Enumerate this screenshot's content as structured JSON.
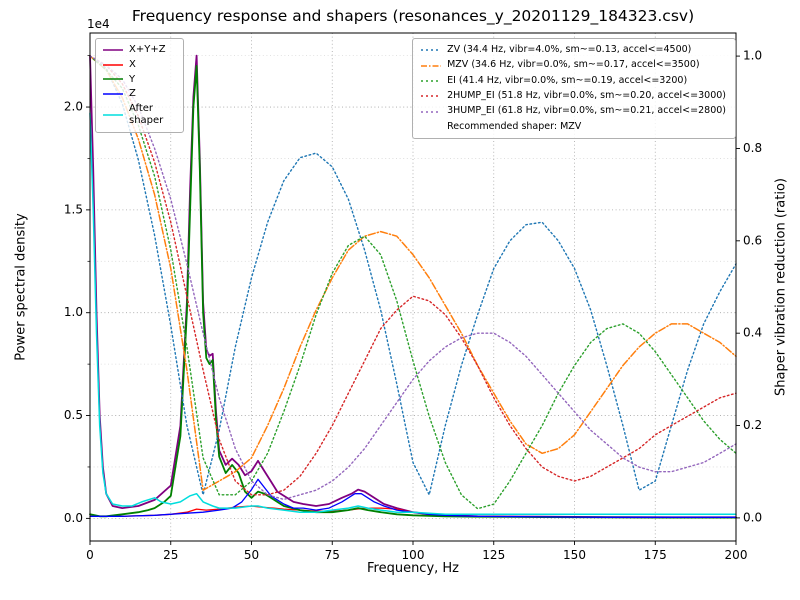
{
  "chart_data": {
    "type": "line",
    "title": "Frequency response and shapers (resonances_y_20201129_184323.csv)",
    "xlabel": "Frequency, Hz",
    "ylabel_left": "Power spectral density",
    "ylabel_right": "Shaper vibration reduction (ratio)",
    "offset_text": "1e4",
    "x_range": [
      0,
      200
    ],
    "y_left_range": [
      -0.11,
      2.36
    ],
    "y_right_range": [
      -0.05,
      1.05
    ],
    "x_ticks": [
      {
        "v": 0,
        "l": "0"
      },
      {
        "v": 25,
        "l": "25"
      },
      {
        "v": 50,
        "l": "50"
      },
      {
        "v": 75,
        "l": "75"
      },
      {
        "v": 100,
        "l": "100"
      },
      {
        "v": 125,
        "l": "125"
      },
      {
        "v": 150,
        "l": "150"
      },
      {
        "v": 175,
        "l": "175"
      },
      {
        "v": 200,
        "l": "200"
      }
    ],
    "y_left_ticks": [
      {
        "v": 0,
        "l": "0.0"
      },
      {
        "v": 0.5,
        "l": "0.5"
      },
      {
        "v": 1,
        "l": "1.0"
      },
      {
        "v": 1.5,
        "l": "1.5"
      },
      {
        "v": 2,
        "l": "2.0"
      }
    ],
    "y_left_minor_ticks": [
      0.25,
      0.75,
      1.25,
      1.75,
      2.25
    ],
    "y_right_ticks": [
      {
        "v": 0,
        "l": "0.0"
      },
      {
        "v": 0.2,
        "l": "0.2"
      },
      {
        "v": 0.4,
        "l": "0.4"
      },
      {
        "v": 0.6,
        "l": "0.6"
      },
      {
        "v": 0.8,
        "l": "0.8"
      },
      {
        "v": 1,
        "l": "1.0"
      }
    ],
    "grid": true,
    "legend_left_position": "upper-left",
    "legend_right_position": "upper-right",
    "recommended_note": "Recommended shaper: MZV",
    "colors": {
      "grid_major": "#a6a6a6",
      "grid_minor": "#d9d9d9",
      "spine": "#000000",
      "text": "#000000"
    },
    "series": [
      {
        "name": "X+Y+Z",
        "axis": "left",
        "color": "#800080",
        "style": "solid",
        "width": 1.8,
        "x": [
          0,
          1,
          2,
          3,
          4,
          5,
          7,
          10,
          15,
          20,
          25,
          28,
          30,
          31,
          32,
          33,
          34,
          35,
          36,
          37,
          38,
          39,
          40,
          42,
          44,
          46,
          48,
          50,
          52,
          54,
          56,
          58,
          60,
          63,
          66,
          70,
          74,
          78,
          81,
          83,
          85,
          88,
          91,
          95,
          100,
          105,
          110,
          120,
          140,
          160,
          180,
          200
        ],
        "y": [
          2.25,
          1.7,
          1.0,
          0.5,
          0.25,
          0.12,
          0.06,
          0.05,
          0.06,
          0.09,
          0.16,
          0.45,
          1.05,
          1.6,
          2.05,
          2.25,
          1.75,
          1.05,
          0.82,
          0.79,
          0.8,
          0.52,
          0.33,
          0.26,
          0.29,
          0.26,
          0.21,
          0.23,
          0.28,
          0.23,
          0.18,
          0.13,
          0.11,
          0.08,
          0.07,
          0.06,
          0.07,
          0.1,
          0.12,
          0.14,
          0.13,
          0.1,
          0.07,
          0.05,
          0.03,
          0.02,
          0.015,
          0.01,
          0.008,
          0.006,
          0.005,
          0.005
        ]
      },
      {
        "name": "X",
        "axis": "left",
        "color": "#ff0000",
        "style": "solid",
        "width": 1.3,
        "x": [
          0,
          10,
          20,
          25,
          30,
          33,
          36,
          40,
          45,
          50,
          53,
          57,
          60,
          65,
          70,
          75,
          80,
          85,
          90,
          95,
          100,
          105,
          110,
          120,
          140,
          160,
          180,
          200
        ],
        "y": [
          0.01,
          0.01,
          0.015,
          0.02,
          0.03,
          0.045,
          0.04,
          0.045,
          0.055,
          0.06,
          0.055,
          0.05,
          0.045,
          0.04,
          0.035,
          0.035,
          0.04,
          0.05,
          0.05,
          0.045,
          0.03,
          0.02,
          0.015,
          0.01,
          0.007,
          0.006,
          0.005,
          0.005
        ]
      },
      {
        "name": "Y",
        "axis": "left",
        "color": "#008000",
        "style": "solid",
        "width": 1.8,
        "x": [
          0,
          3,
          5,
          10,
          15,
          18,
          20,
          23,
          25,
          28,
          30,
          31,
          32,
          33,
          34,
          35,
          36,
          37,
          38,
          39,
          40,
          42,
          44,
          46,
          48,
          50,
          52,
          54,
          56,
          58,
          60,
          65,
          70,
          75,
          80,
          83,
          86,
          90,
          95,
          100,
          110,
          120,
          140,
          160,
          180,
          200
        ],
        "y": [
          0.02,
          0.01,
          0.01,
          0.02,
          0.03,
          0.04,
          0.05,
          0.08,
          0.11,
          0.4,
          1.0,
          1.5,
          2.0,
          2.2,
          1.7,
          1.0,
          0.78,
          0.75,
          0.77,
          0.48,
          0.3,
          0.22,
          0.26,
          0.22,
          0.13,
          0.1,
          0.13,
          0.12,
          0.1,
          0.08,
          0.06,
          0.04,
          0.03,
          0.03,
          0.04,
          0.05,
          0.04,
          0.03,
          0.02,
          0.015,
          0.01,
          0.008,
          0.006,
          0.005,
          0.004,
          0.004
        ]
      },
      {
        "name": "Z",
        "axis": "left",
        "color": "#0000ff",
        "style": "solid",
        "width": 1.3,
        "x": [
          0,
          10,
          20,
          30,
          35,
          40,
          44,
          47,
          50,
          52,
          54,
          56,
          58,
          60,
          63,
          66,
          70,
          74,
          78,
          80,
          82,
          84,
          86,
          88,
          91,
          95,
          100,
          105,
          110,
          120,
          140,
          160,
          180,
          200
        ],
        "y": [
          0.01,
          0.01,
          0.015,
          0.025,
          0.03,
          0.04,
          0.05,
          0.08,
          0.14,
          0.19,
          0.15,
          0.11,
          0.09,
          0.07,
          0.05,
          0.05,
          0.04,
          0.05,
          0.08,
          0.1,
          0.12,
          0.12,
          0.1,
          0.08,
          0.06,
          0.04,
          0.03,
          0.02,
          0.015,
          0.01,
          0.007,
          0.005,
          0.005,
          0.005
        ]
      },
      {
        "name": "After shaper",
        "axis": "left",
        "color": "#00dddd",
        "style": "solid",
        "width": 1.5,
        "x": [
          0,
          1,
          2,
          3,
          4,
          5,
          7,
          10,
          13,
          16,
          20,
          22,
          25,
          28,
          31,
          33,
          35,
          38,
          40,
          45,
          50,
          52,
          55,
          60,
          65,
          70,
          75,
          80,
          83,
          86,
          90,
          95,
          100,
          110,
          130,
          160,
          200
        ],
        "y": [
          1.97,
          1.5,
          0.9,
          0.45,
          0.22,
          0.12,
          0.07,
          0.06,
          0.06,
          0.08,
          0.1,
          0.08,
          0.07,
          0.08,
          0.11,
          0.12,
          0.08,
          0.06,
          0.05,
          0.05,
          0.06,
          0.06,
          0.05,
          0.04,
          0.03,
          0.03,
          0.04,
          0.05,
          0.06,
          0.05,
          0.04,
          0.03,
          0.03,
          0.02,
          0.02,
          0.02,
          0.02
        ]
      },
      {
        "name": "ZV (34.4 Hz, vibr=4.0%, sm~=0.13, accel<=4500)",
        "axis": "right",
        "color": "#1f77b4",
        "style": "dotted",
        "width": 1.4,
        "x": [
          0,
          5,
          10,
          15,
          20,
          25,
          30,
          35,
          40,
          45,
          50,
          55,
          60,
          65,
          70,
          75,
          80,
          85,
          90,
          95,
          100,
          105,
          110,
          115,
          120,
          125,
          130,
          135,
          140,
          145,
          150,
          155,
          160,
          165,
          170,
          175,
          180,
          185,
          190,
          195,
          200
        ],
        "y": [
          1.0,
          0.974,
          0.897,
          0.775,
          0.612,
          0.416,
          0.2,
          0.05,
          0.19,
          0.37,
          0.52,
          0.64,
          0.73,
          0.78,
          0.79,
          0.76,
          0.69,
          0.58,
          0.45,
          0.29,
          0.12,
          0.05,
          0.2,
          0.33,
          0.44,
          0.54,
          0.6,
          0.635,
          0.64,
          0.6,
          0.54,
          0.45,
          0.33,
          0.2,
          0.06,
          0.08,
          0.2,
          0.32,
          0.42,
          0.49,
          0.55
        ]
      },
      {
        "name": "MZV (34.6 Hz, vibr=0.0%, sm~=0.17, accel<=3500)",
        "axis": "right",
        "color": "#ff7f0e",
        "style": "dashdot",
        "width": 1.5,
        "x": [
          0,
          5,
          10,
          15,
          20,
          25,
          30,
          35,
          40,
          45,
          50,
          55,
          60,
          65,
          70,
          75,
          80,
          85,
          90,
          95,
          100,
          105,
          110,
          115,
          120,
          125,
          130,
          135,
          140,
          145,
          150,
          155,
          160,
          165,
          170,
          175,
          180,
          185,
          190,
          195,
          200
        ],
        "y": [
          1.0,
          0.97,
          0.91,
          0.82,
          0.7,
          0.54,
          0.32,
          0.06,
          0.08,
          0.1,
          0.13,
          0.2,
          0.28,
          0.37,
          0.45,
          0.52,
          0.58,
          0.61,
          0.62,
          0.61,
          0.57,
          0.52,
          0.46,
          0.4,
          0.33,
          0.27,
          0.21,
          0.16,
          0.14,
          0.15,
          0.18,
          0.23,
          0.28,
          0.33,
          0.37,
          0.4,
          0.42,
          0.42,
          0.4,
          0.38,
          0.35
        ]
      },
      {
        "name": "EI (41.4 Hz, vibr=0.0%, sm~=0.19, accel<=3200)",
        "axis": "right",
        "color": "#2ca02c",
        "style": "dotted",
        "width": 1.4,
        "x": [
          0,
          5,
          10,
          15,
          20,
          25,
          30,
          35,
          40,
          45,
          50,
          55,
          60,
          65,
          70,
          75,
          80,
          85,
          90,
          95,
          100,
          105,
          110,
          115,
          120,
          125,
          130,
          135,
          140,
          145,
          150,
          155,
          160,
          165,
          170,
          175,
          180,
          185,
          190,
          195,
          200
        ],
        "y": [
          1.0,
          0.97,
          0.93,
          0.85,
          0.74,
          0.58,
          0.37,
          0.13,
          0.05,
          0.05,
          0.08,
          0.14,
          0.23,
          0.33,
          0.44,
          0.53,
          0.59,
          0.61,
          0.57,
          0.47,
          0.34,
          0.22,
          0.12,
          0.05,
          0.02,
          0.03,
          0.08,
          0.14,
          0.2,
          0.27,
          0.33,
          0.38,
          0.41,
          0.42,
          0.4,
          0.36,
          0.31,
          0.26,
          0.21,
          0.17,
          0.14
        ]
      },
      {
        "name": "2HUMP_EI (51.8 Hz, vibr=0.0%, sm~=0.20, accel<=3000)",
        "axis": "right",
        "color": "#d62728",
        "style": "dotted",
        "width": 1.4,
        "x": [
          0,
          5,
          10,
          15,
          20,
          25,
          30,
          35,
          40,
          45,
          50,
          55,
          60,
          65,
          70,
          75,
          80,
          85,
          90,
          95,
          100,
          105,
          110,
          115,
          120,
          125,
          130,
          135,
          140,
          145,
          150,
          155,
          160,
          165,
          170,
          175,
          180,
          185,
          190,
          195,
          200
        ],
        "y": [
          1.0,
          0.98,
          0.94,
          0.87,
          0.77,
          0.64,
          0.48,
          0.32,
          0.17,
          0.08,
          0.05,
          0.05,
          0.06,
          0.09,
          0.14,
          0.2,
          0.27,
          0.34,
          0.41,
          0.45,
          0.48,
          0.47,
          0.44,
          0.39,
          0.33,
          0.26,
          0.2,
          0.15,
          0.11,
          0.09,
          0.08,
          0.09,
          0.11,
          0.13,
          0.15,
          0.18,
          0.2,
          0.22,
          0.24,
          0.26,
          0.27
        ]
      },
      {
        "name": "3HUMP_EI (61.8 Hz, vibr=0.0%, sm~=0.21, accel<=2800)",
        "axis": "right",
        "color": "#9467bd",
        "style": "dotted",
        "width": 1.4,
        "x": [
          0,
          5,
          10,
          15,
          20,
          25,
          30,
          35,
          40,
          45,
          50,
          55,
          60,
          65,
          70,
          75,
          80,
          85,
          90,
          95,
          100,
          105,
          110,
          115,
          120,
          125,
          130,
          135,
          140,
          145,
          150,
          155,
          160,
          165,
          170,
          175,
          180,
          185,
          190,
          195,
          200
        ],
        "y": [
          1.0,
          0.98,
          0.95,
          0.89,
          0.8,
          0.69,
          0.55,
          0.4,
          0.26,
          0.15,
          0.08,
          0.05,
          0.04,
          0.05,
          0.06,
          0.08,
          0.11,
          0.15,
          0.2,
          0.25,
          0.3,
          0.34,
          0.37,
          0.39,
          0.4,
          0.4,
          0.38,
          0.35,
          0.31,
          0.27,
          0.23,
          0.19,
          0.16,
          0.13,
          0.11,
          0.1,
          0.1,
          0.11,
          0.12,
          0.14,
          0.16
        ]
      }
    ]
  }
}
